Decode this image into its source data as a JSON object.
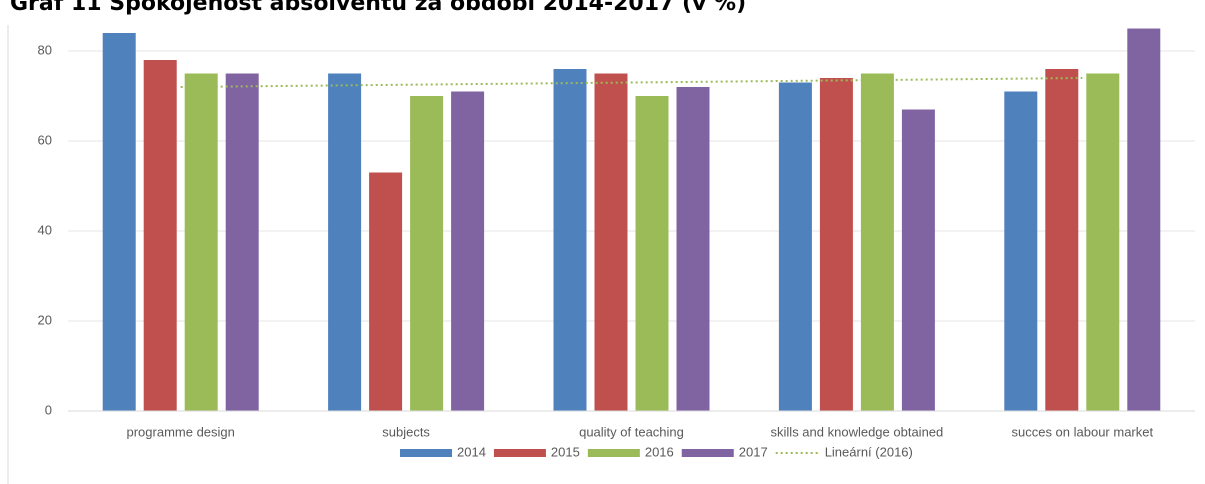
{
  "chart_data": {
    "type": "bar",
    "title": "Graf 11 Spokojenost absolventů za období 2014-2017 (v %)",
    "categories": [
      "programme design",
      "subjects",
      "quality of teaching",
      "skills and knowledge obtained",
      "succes on labour market"
    ],
    "series": [
      {
        "name": "2014",
        "color": "#4f81bd",
        "values": [
          84,
          75,
          76,
          73,
          71
        ]
      },
      {
        "name": "2015",
        "color": "#c0504d",
        "values": [
          78,
          53,
          75,
          74,
          76
        ]
      },
      {
        "name": "2016",
        "color": "#9bbb59",
        "values": [
          75,
          70,
          70,
          75,
          75
        ]
      },
      {
        "name": "2017",
        "color": "#8064a2",
        "values": [
          75,
          71,
          72,
          67,
          85
        ]
      }
    ],
    "trendline": {
      "name": "Lineární (2016)",
      "series": 2,
      "color": "#9bbb59"
    },
    "ylim": [
      0,
      85
    ],
    "yticks": [
      0,
      20,
      40,
      60,
      80
    ],
    "grid": true,
    "legend": "bottom"
  }
}
